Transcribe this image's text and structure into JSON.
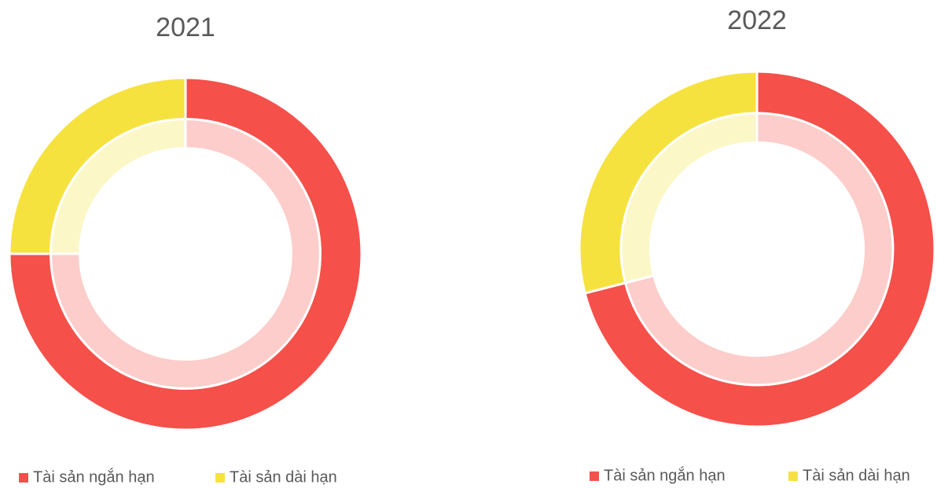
{
  "chart_data": [
    {
      "type": "donut",
      "title": "2021",
      "categories": [
        "Tài sản ngắn hạn",
        "Tài sản dài hạn"
      ],
      "series": [
        {
          "values": [
            75,
            25
          ],
          "colors": [
            "#f5504a",
            "#f6e23e"
          ]
        },
        {
          "values": [
            75,
            25
          ],
          "colors": [
            "#fccdca",
            "#fbf7c7"
          ]
        }
      ]
    },
    {
      "type": "donut",
      "title": "2022",
      "categories": [
        "Tài sản ngắn hạn",
        "Tài sản dài hạn"
      ],
      "series": [
        {
          "values": [
            71,
            29
          ],
          "colors": [
            "#f5504a",
            "#f6e23e"
          ]
        },
        {
          "values": [
            71,
            29
          ],
          "colors": [
            "#fccdca",
            "#fbf7c7"
          ]
        }
      ]
    }
  ]
}
